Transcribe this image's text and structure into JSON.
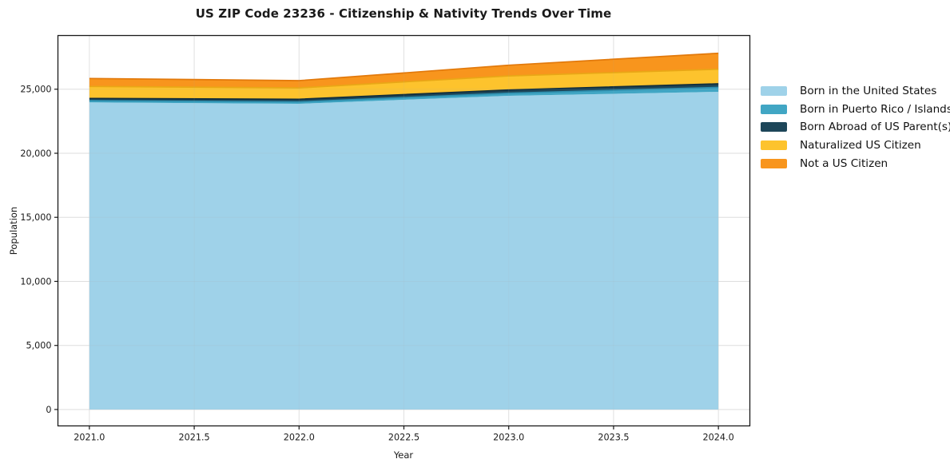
{
  "chart_data": {
    "type": "area",
    "stacked": true,
    "title": "US ZIP Code 23236 - Citizenship & Nativity Trends Over Time",
    "xlabel": "Year",
    "ylabel": "Population",
    "x": [
      2021,
      2022,
      2023,
      2024
    ],
    "series": [
      {
        "name": "Born in the United States",
        "color": "#9fd2e9",
        "edge": "#7db9d6",
        "values": [
          23970,
          23860,
          24485,
          24800
        ]
      },
      {
        "name": "Born in Puerto Rico / Islands",
        "color": "#41a6c4",
        "edge": "#2e8fae",
        "values": [
          140,
          155,
          205,
          340
        ]
      },
      {
        "name": "Born Abroad of US Parent(s)",
        "color": "#1d4659",
        "edge": "#122e3c",
        "values": [
          170,
          200,
          250,
          280
        ]
      },
      {
        "name": "Naturalized US Citizen",
        "color": "#fdc32d",
        "edge": "#e9a716",
        "values": [
          935,
          890,
          1100,
          1140
        ]
      },
      {
        "name": "Not a US Citizen",
        "color": "#f8951d",
        "edge": "#e2790b",
        "values": [
          625,
          565,
          830,
          1245
        ]
      }
    ],
    "totals": [
      25840,
      25670,
      26870,
      27805
    ],
    "xlim": [
      2020.85,
      2024.15
    ],
    "ylim": [
      -1280,
      29190
    ],
    "x_ticks": [
      {
        "value": 2021.0,
        "label": "2021.0"
      },
      {
        "value": 2021.5,
        "label": "2021.5"
      },
      {
        "value": 2022.0,
        "label": "2022.0"
      },
      {
        "value": 2022.5,
        "label": "2022.5"
      },
      {
        "value": 2023.0,
        "label": "2023.0"
      },
      {
        "value": 2023.5,
        "label": "2023.5"
      },
      {
        "value": 2024.0,
        "label": "2024.0"
      }
    ],
    "y_ticks": [
      {
        "value": 0,
        "label": "0"
      },
      {
        "value": 5000,
        "label": "5,000"
      },
      {
        "value": 10000,
        "label": "10,000"
      },
      {
        "value": 15000,
        "label": "15,000"
      },
      {
        "value": 20000,
        "label": "20,000"
      },
      {
        "value": 25000,
        "label": "25,000"
      }
    ],
    "grid": true,
    "legend_position": "right-outside",
    "colors": {
      "background": "#ffffff",
      "gridline": "#e7e7e7",
      "spine": "#1a1a1a",
      "tick_label": "#1c1c1c"
    }
  }
}
